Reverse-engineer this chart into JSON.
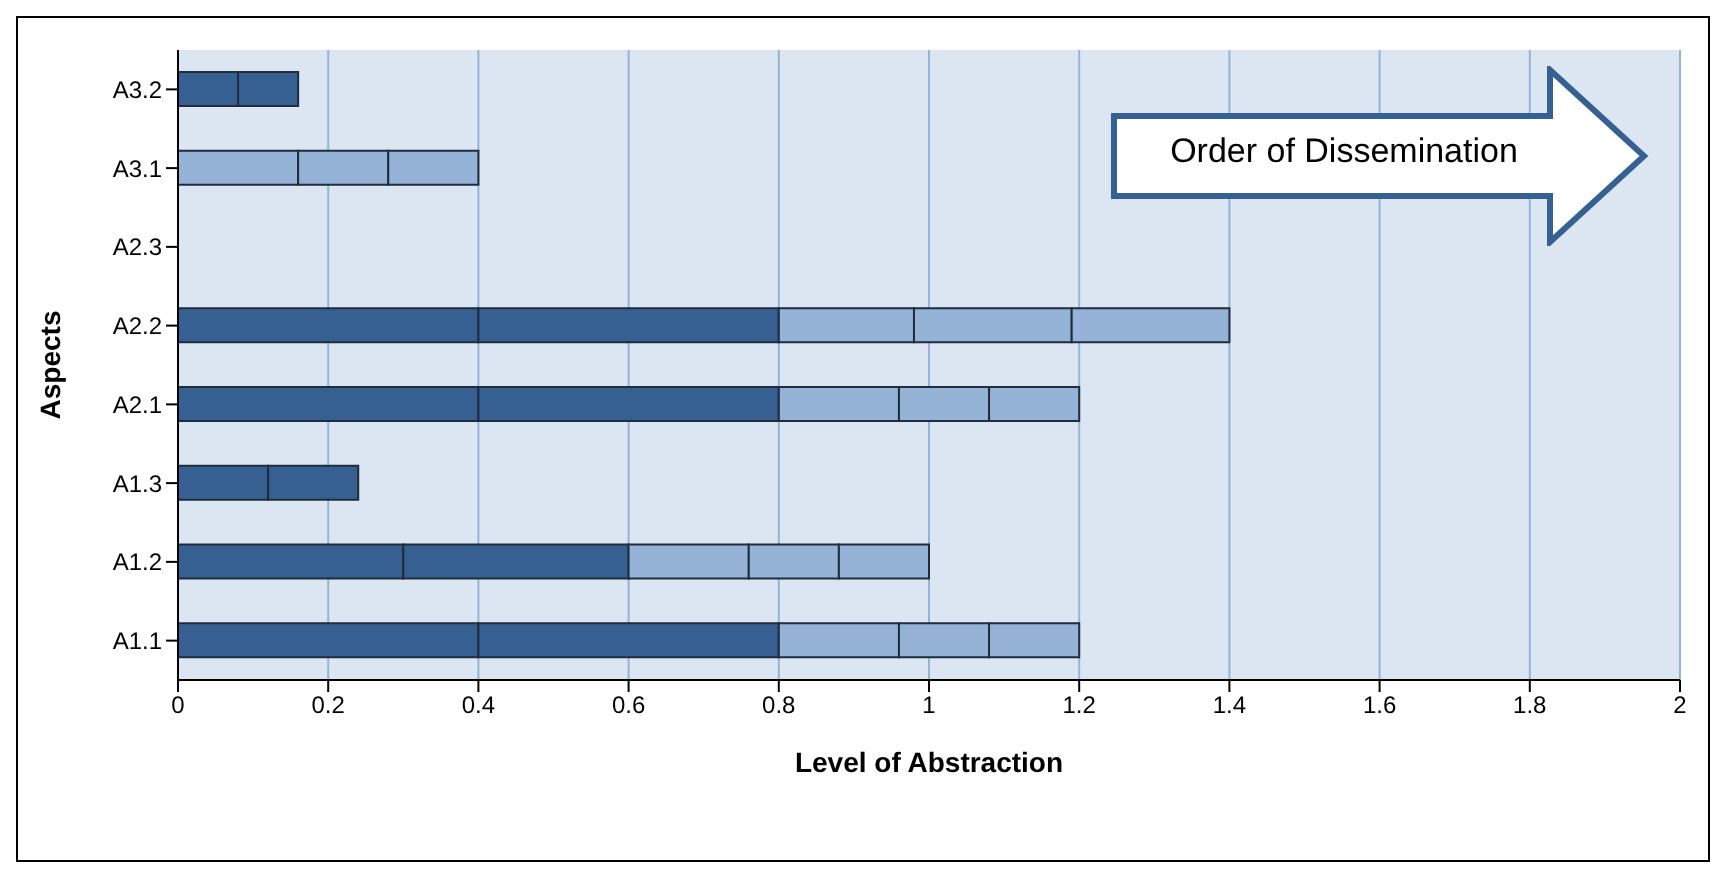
{
  "chart_data": {
    "type": "bar",
    "orientation": "horizontal",
    "stacked": true,
    "xlabel": "Level of Abstraction",
    "ylabel": "Aspects",
    "categories": [
      "A3.2",
      "A3.1",
      "A2.3",
      "A2.2",
      "A2.1",
      "A1.3",
      "A1.2",
      "A1.1"
    ],
    "series": [
      {
        "values": [
          0.08,
          0.16,
          null,
          0.4,
          0.4,
          0.12,
          0.3,
          0.4
        ],
        "colors": [
          "#376092",
          "#95b3d7",
          null,
          "#376092",
          "#376092",
          "#376092",
          "#376092",
          "#376092"
        ]
      },
      {
        "values": [
          0.08,
          0.12,
          null,
          0.4,
          0.4,
          0.12,
          0.3,
          0.4
        ],
        "colors": [
          "#376092",
          "#95b3d7",
          null,
          "#376092",
          "#376092",
          "#376092",
          "#376092",
          "#376092"
        ]
      },
      {
        "values": [
          null,
          0.12,
          null,
          0.18,
          0.16,
          null,
          0.16,
          0.16
        ],
        "colors": [
          null,
          "#95b3d7",
          null,
          "#95b3d7",
          "#95b3d7",
          null,
          "#95b3d7",
          "#95b3d7"
        ]
      },
      {
        "values": [
          null,
          null,
          null,
          0.21,
          0.12,
          null,
          0.12,
          0.12
        ],
        "colors": [
          null,
          null,
          null,
          "#95b3d7",
          "#95b3d7",
          null,
          "#95b3d7",
          "#95b3d7"
        ]
      },
      {
        "values": [
          null,
          null,
          null,
          0.21,
          0.12,
          null,
          0.12,
          0.12
        ],
        "colors": [
          null,
          null,
          null,
          "#95b3d7",
          "#95b3d7",
          null,
          "#95b3d7",
          "#95b3d7"
        ]
      }
    ],
    "xlim": [
      0,
      2
    ],
    "xticks": [
      0,
      0.2,
      0.4,
      0.6,
      0.8,
      1,
      1.2,
      1.4,
      1.6,
      1.8,
      2
    ],
    "grid": "x",
    "legend": false,
    "annotations": [
      "Order of Dissemination"
    ]
  }
}
